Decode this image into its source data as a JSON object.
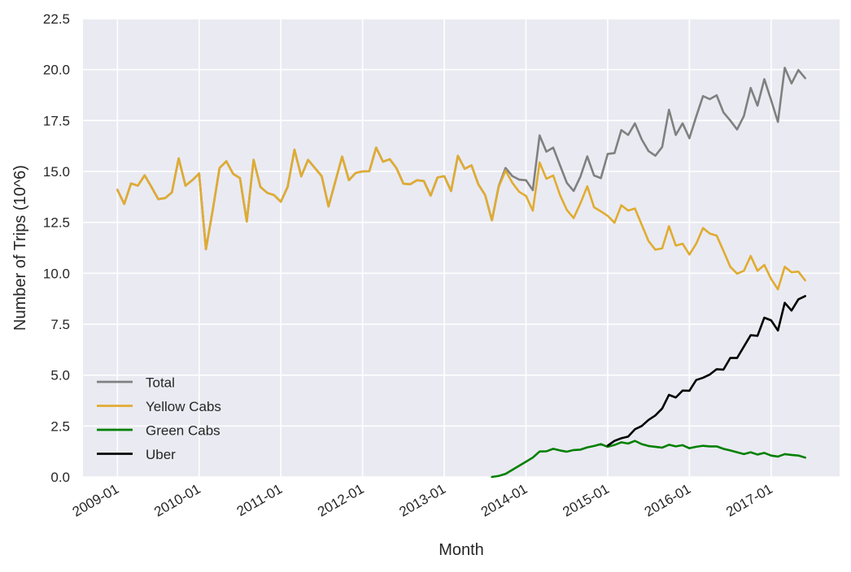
{
  "chart_data": {
    "type": "line",
    "title": "",
    "xlabel": "Month",
    "ylabel": "Number of Trips (10^6)",
    "ylim": [
      0,
      22.5
    ],
    "xlim_months": [
      "2008-08",
      "2017-11"
    ],
    "grid": true,
    "legend_position": "lower-left",
    "yticks": [
      "0.0",
      "2.5",
      "5.0",
      "7.5",
      "10.0",
      "12.5",
      "15.0",
      "17.5",
      "20.0",
      "22.5"
    ],
    "ytick_values": [
      0,
      2.5,
      5,
      7.5,
      10,
      12.5,
      15,
      17.5,
      20,
      22.5
    ],
    "xticks": [
      "2009-01",
      "2010-01",
      "2011-01",
      "2012-01",
      "2013-01",
      "2014-01",
      "2015-01",
      "2016-01",
      "2017-01"
    ],
    "x_start": "2009-01",
    "series": [
      {
        "name": "Total",
        "color": "#808080",
        "start": "2009-01",
        "values": [
          14.1,
          13.4,
          14.41,
          14.3,
          14.81,
          14.24,
          13.64,
          13.69,
          13.97,
          15.64,
          14.3,
          14.57,
          14.9,
          11.18,
          13.1,
          15.17,
          15.5,
          14.88,
          14.67,
          12.54,
          15.57,
          14.24,
          13.95,
          13.84,
          13.51,
          14.24,
          16.07,
          14.76,
          15.57,
          15.17,
          14.77,
          13.28,
          14.5,
          15.73,
          14.57,
          14.93,
          15.0,
          15.01,
          16.17,
          15.48,
          15.6,
          15.15,
          14.4,
          14.37,
          14.57,
          14.53,
          13.81,
          14.7,
          14.77,
          14.04,
          15.77,
          15.13,
          15.3,
          14.37,
          13.84,
          12.6,
          14.28,
          15.17,
          14.77,
          14.6,
          14.57,
          14.08,
          16.77,
          15.97,
          16.17,
          15.3,
          14.44,
          14.04,
          14.75,
          15.74,
          14.8,
          14.67,
          15.86,
          15.9,
          17.03,
          16.79,
          17.36,
          16.57,
          16.0,
          15.77,
          16.2,
          18.03,
          16.79,
          17.36,
          16.63,
          17.7,
          18.7,
          18.55,
          18.74,
          17.9,
          17.5,
          17.06,
          17.72,
          19.1,
          18.23,
          19.53,
          18.5,
          17.43,
          20.09,
          19.32,
          19.98,
          19.58
        ]
      },
      {
        "name": "Yellow Cabs",
        "color": "#e0ac30",
        "start": "2009-01",
        "values": [
          14.1,
          13.4,
          14.41,
          14.3,
          14.81,
          14.24,
          13.64,
          13.69,
          13.97,
          15.64,
          14.3,
          14.57,
          14.9,
          11.18,
          13.1,
          15.17,
          15.5,
          14.88,
          14.67,
          12.54,
          15.57,
          14.24,
          13.95,
          13.84,
          13.51,
          14.24,
          16.07,
          14.76,
          15.57,
          15.17,
          14.77,
          13.28,
          14.5,
          15.73,
          14.57,
          14.93,
          15.0,
          15.01,
          16.17,
          15.48,
          15.6,
          15.15,
          14.4,
          14.37,
          14.57,
          14.53,
          13.81,
          14.7,
          14.77,
          14.04,
          15.77,
          15.13,
          15.3,
          14.37,
          13.84,
          12.6,
          14.24,
          15.04,
          14.44,
          14.0,
          13.8,
          13.07,
          15.44,
          14.64,
          14.8,
          13.84,
          13.11,
          12.71,
          13.44,
          14.27,
          13.24,
          13.04,
          12.82,
          12.48,
          13.34,
          13.08,
          13.18,
          12.38,
          11.58,
          11.16,
          11.22,
          12.31,
          11.36,
          11.45,
          10.92,
          11.45,
          12.22,
          11.95,
          11.85,
          11.1,
          10.32,
          9.98,
          10.12,
          10.85,
          10.12,
          10.41,
          9.72,
          9.21,
          10.32,
          10.05,
          10.08,
          9.65
        ]
      },
      {
        "name": "Green Cabs",
        "color": "#008000",
        "start": "2013-08",
        "values": [
          0.0,
          0.05,
          0.15,
          0.35,
          0.55,
          0.75,
          0.95,
          1.25,
          1.26,
          1.38,
          1.3,
          1.24,
          1.32,
          1.34,
          1.45,
          1.52,
          1.61,
          1.48,
          1.57,
          1.7,
          1.64,
          1.77,
          1.61,
          1.52,
          1.48,
          1.44,
          1.58,
          1.5,
          1.56,
          1.41,
          1.48,
          1.53,
          1.5,
          1.5,
          1.38,
          1.3,
          1.21,
          1.12,
          1.21,
          1.1,
          1.18,
          1.05,
          1.0,
          1.12,
          1.08,
          1.05,
          0.95
        ]
      },
      {
        "name": "Uber",
        "color": "#000000",
        "start": "2015-01",
        "values": [
          1.54,
          1.77,
          1.9,
          1.98,
          2.34,
          2.5,
          2.8,
          3.02,
          3.36,
          4.03,
          3.9,
          4.24,
          4.23,
          4.76,
          4.87,
          5.03,
          5.29,
          5.27,
          5.84,
          5.84,
          6.4,
          6.96,
          6.93,
          7.82,
          7.69,
          7.19,
          8.55,
          8.17,
          8.72,
          8.88
        ]
      }
    ]
  },
  "colors": {
    "plot_background": "#eaeaf2",
    "grid": "#ffffff",
    "text": "#262626"
  }
}
